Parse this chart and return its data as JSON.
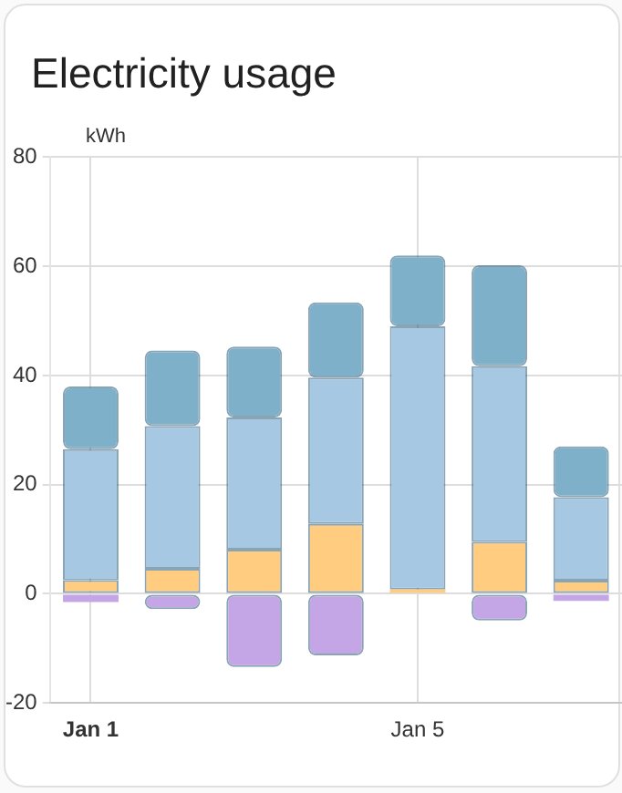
{
  "chart_data": {
    "type": "bar",
    "title": "Electricity usage",
    "ylabel": "kWh",
    "stacked": true,
    "grid": true,
    "legend": false,
    "categories": [
      "Jan 1",
      null,
      null,
      null,
      "Jan 5",
      null,
      null
    ],
    "ylim": [
      -20,
      80
    ],
    "yticks": [
      -20,
      0,
      20,
      40,
      60,
      80
    ],
    "series": [
      {
        "color": "#ffcc80",
        "values": [
          2.5,
          4.6,
          8.1,
          12.8,
          0.8,
          9.5,
          2.4
        ]
      },
      {
        "color": "#a6c8e3",
        "values": [
          24,
          26.1,
          24.2,
          26.8,
          48.2,
          32.2,
          15.3
        ]
      },
      {
        "color": "#7fb0c9",
        "values": [
          11.5,
          13.9,
          13,
          13.8,
          13,
          18.5,
          9.3
        ]
      },
      {
        "color": "#c4a6e6",
        "values": [
          -1.5,
          -2.8,
          -13.4,
          -11.3,
          null,
          -4.9,
          -1.3
        ]
      }
    ]
  }
}
